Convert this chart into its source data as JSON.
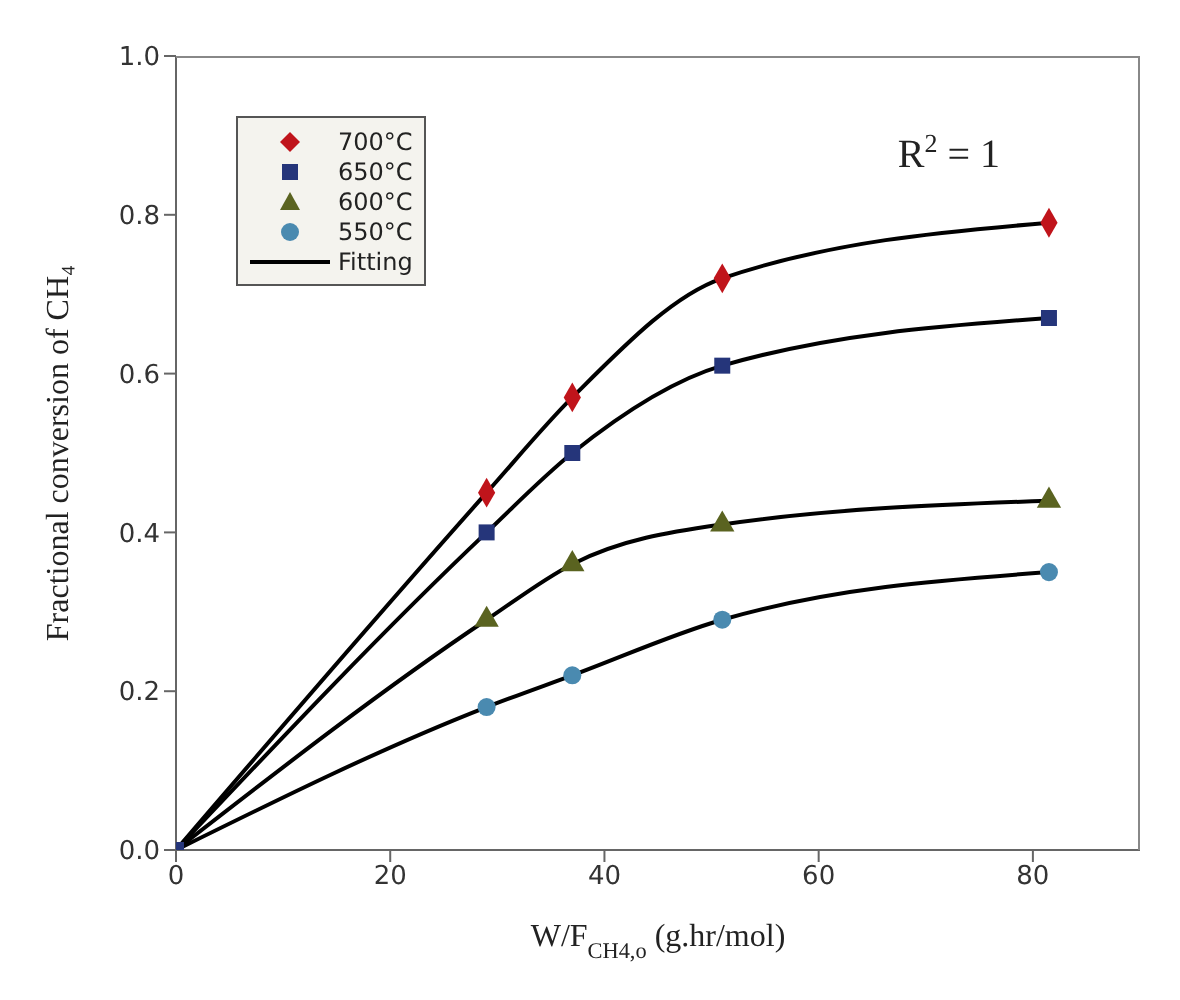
{
  "chart_data": {
    "type": "scatter",
    "xlabel": "W/F$_{CH4,o}$ (g.hr/mol)",
    "ylabel": "Fractional conversion of CH₄",
    "x": [
      0,
      29,
      37,
      51,
      81.5
    ],
    "series": [
      {
        "name": "700°C",
        "marker": "diamond",
        "color": "#c0141b",
        "values": [
          null,
          0.45,
          0.57,
          0.72,
          0.79
        ]
      },
      {
        "name": "650°C",
        "marker": "square",
        "color": "#25357a",
        "values": [
          0,
          0.4,
          0.5,
          0.61,
          0.67
        ]
      },
      {
        "name": "600°C",
        "marker": "triangle",
        "color": "#5a6320",
        "values": [
          null,
          0.29,
          0.36,
          0.41,
          0.44
        ]
      },
      {
        "name": "550°C",
        "marker": "circle",
        "color": "#4a8ab0",
        "values": [
          null,
          0.18,
          0.22,
          0.29,
          0.35
        ]
      },
      {
        "name": "Fitting",
        "type": "line",
        "marker": "none",
        "color": "#000000",
        "values": [
          0,
          0.45,
          0.57,
          0.72,
          0.79
        ]
      },
      {
        "type": "line",
        "marker": "none",
        "color": "#000000",
        "values": [
          0,
          0.4,
          0.5,
          0.61,
          0.67
        ]
      },
      {
        "type": "line",
        "marker": "none",
        "color": "#000000",
        "values": [
          0,
          0.29,
          0.36,
          0.41,
          0.44
        ]
      },
      {
        "type": "line",
        "marker": "none",
        "color": "#000000",
        "values": [
          0,
          0.18,
          0.22,
          0.29,
          0.35
        ]
      }
    ],
    "xlim": [
      0,
      90
    ],
    "xticks": [
      0,
      20,
      40,
      60,
      80
    ],
    "ylim": [
      0,
      1
    ],
    "yticks": [
      {
        "value": 0,
        "label": "0.0"
      },
      {
        "value": 0.2,
        "label": "0.2"
      },
      {
        "value": 0.4,
        "label": "0.4"
      },
      {
        "value": 0.6,
        "label": "0.6"
      },
      {
        "value": 0.8,
        "label": "0.8"
      },
      {
        "value": 1,
        "label": "1.0"
      }
    ],
    "annotations": [
      "R$^{2}$ = 1"
    ],
    "legend": "top left",
    "grid": false
  }
}
